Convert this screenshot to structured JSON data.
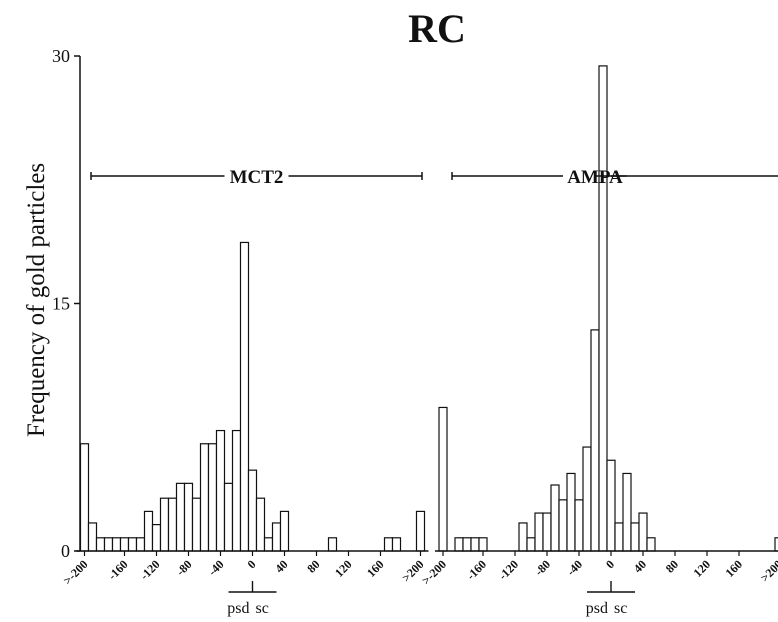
{
  "chart_data": {
    "type": "bar",
    "title": "RC",
    "ylabel": "Frequency of gold particles",
    "ylim": [
      0,
      30
    ],
    "yticks": [
      0,
      15,
      30
    ],
    "bin_width": 10,
    "x_tick_labels": [
      ">-200",
      "-160",
      "-120",
      "-80",
      "-40",
      "0",
      "40",
      "80",
      "120",
      "160",
      ">200"
    ],
    "x_tick_values": [
      -210,
      -160,
      -120,
      -80,
      -40,
      0,
      40,
      80,
      120,
      160,
      210
    ],
    "marker_labels": {
      "left": "psd",
      "right": "sc"
    },
    "panels": [
      {
        "name": "MCT2",
        "bins": [
          {
            "x": -210,
            "y": 6.5
          },
          {
            "x": -200,
            "y": 1.7
          },
          {
            "x": -190,
            "y": 0.8
          },
          {
            "x": -180,
            "y": 0.8
          },
          {
            "x": -170,
            "y": 0.8
          },
          {
            "x": -160,
            "y": 0.8
          },
          {
            "x": -150,
            "y": 0.8
          },
          {
            "x": -140,
            "y": 0.8
          },
          {
            "x": -130,
            "y": 2.4
          },
          {
            "x": -120,
            "y": 1.6
          },
          {
            "x": -110,
            "y": 3.2
          },
          {
            "x": -100,
            "y": 3.2
          },
          {
            "x": -90,
            "y": 4.1
          },
          {
            "x": -80,
            "y": 4.1
          },
          {
            "x": -70,
            "y": 3.2
          },
          {
            "x": -60,
            "y": 6.5
          },
          {
            "x": -50,
            "y": 6.5
          },
          {
            "x": -40,
            "y": 7.3
          },
          {
            "x": -30,
            "y": 4.1
          },
          {
            "x": -20,
            "y": 7.3
          },
          {
            "x": -10,
            "y": 18.7
          },
          {
            "x": 0,
            "y": 4.9
          },
          {
            "x": 10,
            "y": 3.2
          },
          {
            "x": 20,
            "y": 0.8
          },
          {
            "x": 30,
            "y": 1.7
          },
          {
            "x": 40,
            "y": 2.4
          },
          {
            "x": 100,
            "y": 0.8
          },
          {
            "x": 170,
            "y": 0.8
          },
          {
            "x": 180,
            "y": 0.8
          },
          {
            "x": 210,
            "y": 2.4
          }
        ]
      },
      {
        "name": "AMPA",
        "bins": [
          {
            "x": -210,
            "y": 8.7
          },
          {
            "x": -190,
            "y": 0.8
          },
          {
            "x": -180,
            "y": 0.8
          },
          {
            "x": -170,
            "y": 0.8
          },
          {
            "x": -160,
            "y": 0.8
          },
          {
            "x": -110,
            "y": 1.7
          },
          {
            "x": -100,
            "y": 0.8
          },
          {
            "x": -90,
            "y": 2.3
          },
          {
            "x": -80,
            "y": 2.3
          },
          {
            "x": -70,
            "y": 4.0
          },
          {
            "x": -60,
            "y": 3.1
          },
          {
            "x": -50,
            "y": 4.7
          },
          {
            "x": -40,
            "y": 3.1
          },
          {
            "x": -30,
            "y": 6.3
          },
          {
            "x": -20,
            "y": 13.4
          },
          {
            "x": -10,
            "y": 29.4
          },
          {
            "x": 0,
            "y": 5.5
          },
          {
            "x": 10,
            "y": 1.7
          },
          {
            "x": 20,
            "y": 4.7
          },
          {
            "x": 30,
            "y": 1.7
          },
          {
            "x": 40,
            "y": 2.3
          },
          {
            "x": 50,
            "y": 0.8
          },
          {
            "x": 210,
            "y": 0.8
          }
        ]
      }
    ]
  }
}
